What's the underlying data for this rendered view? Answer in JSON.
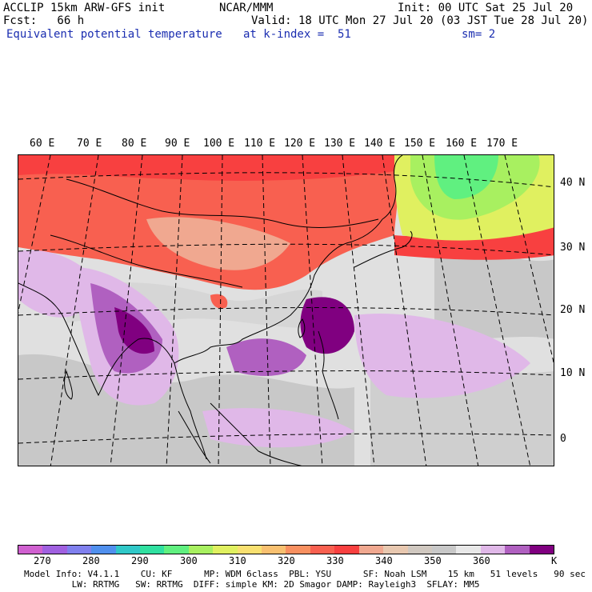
{
  "header": {
    "line1_left": "ACCLIP 15km ARW-GFS init",
    "line1_center": "NCAR/MMM",
    "line1_right": "Init: 00 UTC Sat 25 Jul 20",
    "line2_left": "Fcst:   66 h",
    "line2_right": "Valid: 18 UTC Mon 27 Jul 20 (03 JST Tue 28 Jul 20)",
    "line3_field": "Equivalent potential temperature",
    "line3_level": "at k-index =  51",
    "line3_smooth": "sm= 2"
  },
  "map": {
    "longitude_labels": [
      "60 E",
      "70 E",
      "80 E",
      "90 E",
      "100 E",
      "110 E",
      "120 E",
      "130 E",
      "140 E",
      "150 E",
      "160 E",
      "170 E"
    ],
    "latitude_labels": [
      "40 N",
      "30 N",
      "20 N",
      "10 N",
      "0"
    ]
  },
  "colorbar": {
    "colors": [
      "#d060d0",
      "#a060e0",
      "#8080ee",
      "#5090ee",
      "#30c8c8",
      "#30e0a0",
      "#60f080",
      "#a8f060",
      "#e0f060",
      "#f8e070",
      "#f8c070",
      "#f89060",
      "#f86050",
      "#f84040",
      "#f0a890",
      "#e8c8b0",
      "#d0c8c0",
      "#c8c8c8",
      "#e8e8e8",
      "#e0b8e8",
      "#b060c0",
      "#800080"
    ],
    "tick_labels": [
      "270",
      "280",
      "290",
      "300",
      "310",
      "320",
      "330",
      "340",
      "350",
      "360"
    ],
    "unit": "K"
  },
  "footer": {
    "line1": "Model Info: V4.1.1    CU: KF      MP: WDM 6class  PBL: YSU      SF: Noah LSM    15 km   51 levels   90 sec",
    "line2": "         LW: RRTMG   SW: RRTMG  DIFF: simple KM: 2D Smagor DAMP: Rayleigh3  SFLAY: MM5"
  }
}
